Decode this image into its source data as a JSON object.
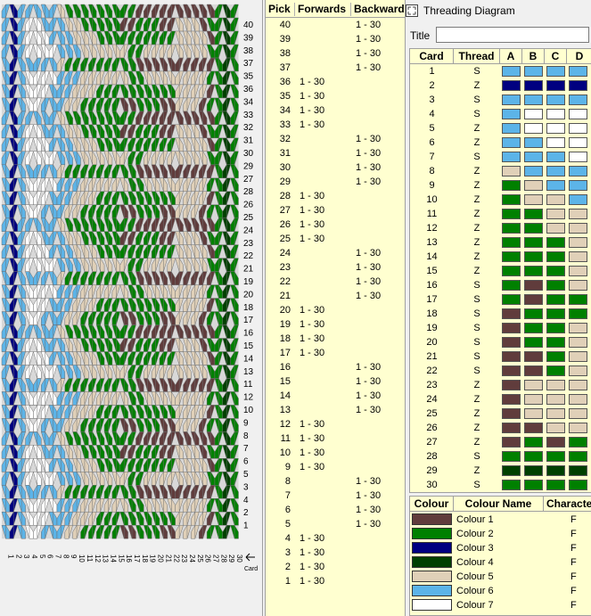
{
  "colours": {
    "1": "#603c3c",
    "2": "#008000",
    "3": "#000080",
    "4": "#004000",
    "5": "#e0d0b8",
    "6": "#5cb4e8",
    "7": "#ffffff"
  },
  "weave": {
    "card_axis_label": "Card",
    "card_numbers": [
      "1",
      "2",
      "3",
      "4",
      "5",
      "6",
      "7",
      "8",
      "9",
      "10",
      "11",
      "12",
      "13",
      "14",
      "15",
      "16",
      "17",
      "18",
      "19",
      "20",
      "21",
      "22",
      "23",
      "24",
      "25",
      "26",
      "27",
      "28",
      "29",
      "30"
    ],
    "row_numbers": [
      "40",
      "39",
      "38",
      "37",
      "35",
      "36",
      "34",
      "33",
      "32",
      "31",
      "30",
      "29",
      "27",
      "28",
      "26",
      "25",
      "24",
      "23",
      "22",
      "21",
      "19",
      "20",
      "18",
      "17",
      "16",
      "15",
      "14",
      "13",
      "11",
      "12",
      "10",
      "9",
      "8",
      "7",
      "6",
      "5",
      "3",
      "4",
      "2",
      "1"
    ]
  },
  "pick_table": {
    "headers": {
      "pick": "Pick",
      "forwards": "Forwards",
      "backwards": "Backwards"
    },
    "rows": [
      {
        "pick": "40",
        "fwd": "",
        "bwd": "1 - 30"
      },
      {
        "pick": "39",
        "fwd": "",
        "bwd": "1 - 30"
      },
      {
        "pick": "38",
        "fwd": "",
        "bwd": "1 - 30"
      },
      {
        "pick": "37",
        "fwd": "",
        "bwd": "1 - 30"
      },
      {
        "pick": "36",
        "fwd": "1 - 30",
        "bwd": ""
      },
      {
        "pick": "35",
        "fwd": "1 - 30",
        "bwd": ""
      },
      {
        "pick": "34",
        "fwd": "1 - 30",
        "bwd": ""
      },
      {
        "pick": "33",
        "fwd": "1 - 30",
        "bwd": ""
      },
      {
        "pick": "32",
        "fwd": "",
        "bwd": "1 - 30"
      },
      {
        "pick": "31",
        "fwd": "",
        "bwd": "1 - 30"
      },
      {
        "pick": "30",
        "fwd": "",
        "bwd": "1 - 30"
      },
      {
        "pick": "29",
        "fwd": "",
        "bwd": "1 - 30"
      },
      {
        "pick": "28",
        "fwd": "1 - 30",
        "bwd": ""
      },
      {
        "pick": "27",
        "fwd": "1 - 30",
        "bwd": ""
      },
      {
        "pick": "26",
        "fwd": "1 - 30",
        "bwd": ""
      },
      {
        "pick": "25",
        "fwd": "1 - 30",
        "bwd": ""
      },
      {
        "pick": "24",
        "fwd": "",
        "bwd": "1 - 30"
      },
      {
        "pick": "23",
        "fwd": "",
        "bwd": "1 - 30"
      },
      {
        "pick": "22",
        "fwd": "",
        "bwd": "1 - 30"
      },
      {
        "pick": "21",
        "fwd": "",
        "bwd": "1 - 30"
      },
      {
        "pick": "20",
        "fwd": "1 - 30",
        "bwd": ""
      },
      {
        "pick": "19",
        "fwd": "1 - 30",
        "bwd": ""
      },
      {
        "pick": "18",
        "fwd": "1 - 30",
        "bwd": ""
      },
      {
        "pick": "17",
        "fwd": "1 - 30",
        "bwd": ""
      },
      {
        "pick": "16",
        "fwd": "",
        "bwd": "1 - 30"
      },
      {
        "pick": "15",
        "fwd": "",
        "bwd": "1 - 30"
      },
      {
        "pick": "14",
        "fwd": "",
        "bwd": "1 - 30"
      },
      {
        "pick": "13",
        "fwd": "",
        "bwd": "1 - 30"
      },
      {
        "pick": "12",
        "fwd": "1 - 30",
        "bwd": ""
      },
      {
        "pick": "11",
        "fwd": "1 - 30",
        "bwd": ""
      },
      {
        "pick": "10",
        "fwd": "1 - 30",
        "bwd": ""
      },
      {
        "pick": "9",
        "fwd": "1 - 30",
        "bwd": ""
      },
      {
        "pick": "8",
        "fwd": "",
        "bwd": "1 - 30"
      },
      {
        "pick": "7",
        "fwd": "",
        "bwd": "1 - 30"
      },
      {
        "pick": "6",
        "fwd": "",
        "bwd": "1 - 30"
      },
      {
        "pick": "5",
        "fwd": "",
        "bwd": "1 - 30"
      },
      {
        "pick": "4",
        "fwd": "1 - 30",
        "bwd": ""
      },
      {
        "pick": "3",
        "fwd": "1 - 30",
        "bwd": ""
      },
      {
        "pick": "2",
        "fwd": "1 - 30",
        "bwd": ""
      },
      {
        "pick": "1",
        "fwd": "1 - 30",
        "bwd": ""
      }
    ]
  },
  "threading": {
    "window_title": "Threading Diagram",
    "title_label": "Title",
    "title_value": "",
    "headers": {
      "card": "Card",
      "thread": "Thread",
      "holes": [
        "A",
        "B",
        "C",
        "D"
      ]
    },
    "cards": [
      {
        "card": "1",
        "thread": "S",
        "holes": [
          6,
          6,
          6,
          6
        ]
      },
      {
        "card": "2",
        "thread": "Z",
        "holes": [
          3,
          3,
          3,
          3
        ]
      },
      {
        "card": "3",
        "thread": "S",
        "holes": [
          6,
          6,
          6,
          6
        ]
      },
      {
        "card": "4",
        "thread": "S",
        "holes": [
          6,
          7,
          7,
          7
        ]
      },
      {
        "card": "5",
        "thread": "Z",
        "holes": [
          6,
          7,
          7,
          7
        ]
      },
      {
        "card": "6",
        "thread": "Z",
        "holes": [
          6,
          6,
          7,
          7
        ]
      },
      {
        "card": "7",
        "thread": "S",
        "holes": [
          6,
          6,
          6,
          7
        ]
      },
      {
        "card": "8",
        "thread": "Z",
        "holes": [
          5,
          6,
          6,
          6
        ]
      },
      {
        "card": "9",
        "thread": "Z",
        "holes": [
          2,
          5,
          6,
          6
        ]
      },
      {
        "card": "10",
        "thread": "Z",
        "holes": [
          2,
          5,
          5,
          6
        ]
      },
      {
        "card": "11",
        "thread": "Z",
        "holes": [
          2,
          2,
          5,
          5
        ]
      },
      {
        "card": "12",
        "thread": "Z",
        "holes": [
          2,
          2,
          5,
          5
        ]
      },
      {
        "card": "13",
        "thread": "Z",
        "holes": [
          2,
          2,
          2,
          5
        ]
      },
      {
        "card": "14",
        "thread": "Z",
        "holes": [
          2,
          2,
          2,
          5
        ]
      },
      {
        "card": "15",
        "thread": "Z",
        "holes": [
          2,
          2,
          2,
          5
        ]
      },
      {
        "card": "16",
        "thread": "S",
        "holes": [
          2,
          1,
          2,
          5
        ]
      },
      {
        "card": "17",
        "thread": "S",
        "holes": [
          2,
          1,
          2,
          2
        ]
      },
      {
        "card": "18",
        "thread": "S",
        "holes": [
          1,
          2,
          2,
          2
        ]
      },
      {
        "card": "19",
        "thread": "S",
        "holes": [
          1,
          2,
          2,
          5
        ]
      },
      {
        "card": "20",
        "thread": "S",
        "holes": [
          1,
          2,
          2,
          5
        ]
      },
      {
        "card": "21",
        "thread": "S",
        "holes": [
          1,
          1,
          2,
          5
        ]
      },
      {
        "card": "22",
        "thread": "S",
        "holes": [
          1,
          1,
          2,
          5
        ]
      },
      {
        "card": "23",
        "thread": "Z",
        "holes": [
          1,
          5,
          5,
          5
        ]
      },
      {
        "card": "24",
        "thread": "Z",
        "holes": [
          1,
          5,
          5,
          5
        ]
      },
      {
        "card": "25",
        "thread": "Z",
        "holes": [
          1,
          5,
          5,
          5
        ]
      },
      {
        "card": "26",
        "thread": "Z",
        "holes": [
          1,
          1,
          5,
          5
        ]
      },
      {
        "card": "27",
        "thread": "Z",
        "holes": [
          1,
          2,
          1,
          2
        ]
      },
      {
        "card": "28",
        "thread": "S",
        "holes": [
          2,
          2,
          2,
          2
        ]
      },
      {
        "card": "29",
        "thread": "Z",
        "holes": [
          4,
          4,
          4,
          4
        ]
      },
      {
        "card": "30",
        "thread": "S",
        "holes": [
          2,
          2,
          2,
          2
        ]
      }
    ]
  },
  "colour_table": {
    "headers": {
      "colour": "Colour",
      "name": "Colour Name",
      "character": "Character"
    },
    "rows": [
      {
        "key": "1",
        "name": "Colour 1",
        "char": "F"
      },
      {
        "key": "2",
        "name": "Colour 2",
        "char": "F"
      },
      {
        "key": "3",
        "name": "Colour 3",
        "char": "F"
      },
      {
        "key": "4",
        "name": "Colour 4",
        "char": "F"
      },
      {
        "key": "5",
        "name": "Colour 5",
        "char": "F"
      },
      {
        "key": "6",
        "name": "Colour 6",
        "char": "F"
      },
      {
        "key": "7",
        "name": "Colour 7",
        "char": "F"
      }
    ]
  }
}
